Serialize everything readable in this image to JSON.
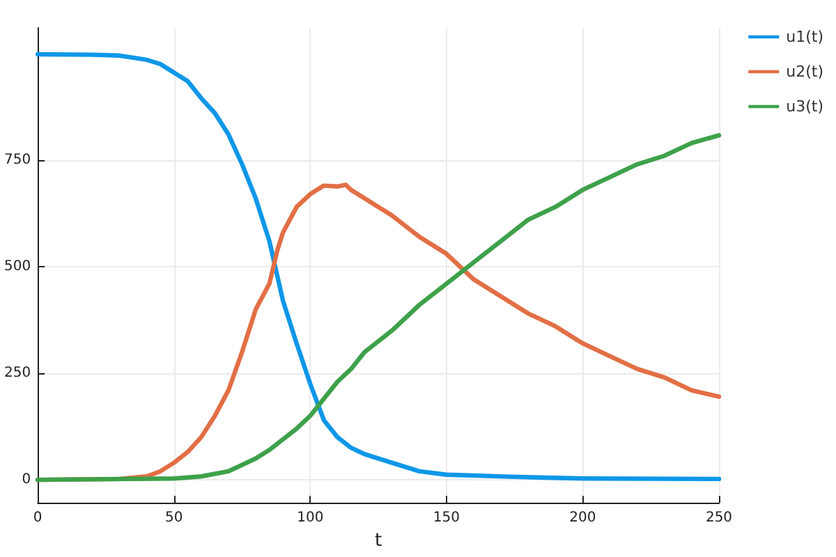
{
  "chart_data": {
    "type": "line",
    "xlabel": "t",
    "xlim": [
      0,
      250
    ],
    "ylim": [
      -54,
      1060
    ],
    "xticks": [
      0,
      50,
      100,
      150,
      200,
      250
    ],
    "yticks": [
      0,
      250,
      500,
      750
    ],
    "grid": true,
    "legend": "top right",
    "marker": "none",
    "line_style": "solid",
    "series": [
      {
        "name": "u1(t)",
        "color": "#0f97e8",
        "x": [
          0,
          20,
          30,
          40,
          45,
          50,
          55,
          60,
          65,
          70,
          75,
          80,
          85,
          90,
          95,
          100,
          105,
          110,
          115,
          120,
          130,
          140,
          150,
          175,
          200,
          250
        ],
        "values": [
          998,
          997,
          995,
          985,
          975,
          955,
          935,
          895,
          860,
          810,
          740,
          660,
          560,
          420,
          320,
          225,
          140,
          100,
          75,
          60,
          40,
          20,
          12,
          7,
          3,
          2
        ]
      },
      {
        "name": "u2(t)",
        "color": "#e26f45",
        "x": [
          0,
          30,
          40,
          45,
          50,
          55,
          60,
          65,
          70,
          75,
          80,
          85,
          88,
          90,
          95,
          100,
          105,
          110,
          113,
          115,
          120,
          130,
          140,
          150,
          160,
          170,
          180,
          190,
          200,
          210,
          220,
          230,
          240,
          250
        ],
        "values": [
          0,
          2,
          8,
          20,
          40,
          65,
          100,
          150,
          210,
          300,
          400,
          460,
          540,
          580,
          640,
          670,
          690,
          688,
          692,
          680,
          660,
          620,
          570,
          530,
          470,
          430,
          390,
          360,
          320,
          290,
          260,
          240,
          210,
          195
        ]
      },
      {
        "name": "u3(t)",
        "color": "#3ea14a",
        "x": [
          0,
          50,
          60,
          70,
          80,
          85,
          90,
          95,
          100,
          105,
          110,
          115,
          120,
          130,
          140,
          150,
          160,
          170,
          180,
          190,
          200,
          210,
          220,
          230,
          240,
          250
        ],
        "values": [
          0,
          3,
          8,
          20,
          50,
          70,
          95,
          120,
          150,
          190,
          230,
          260,
          300,
          350,
          410,
          460,
          510,
          560,
          610,
          640,
          680,
          710,
          740,
          760,
          790,
          808
        ]
      }
    ]
  }
}
